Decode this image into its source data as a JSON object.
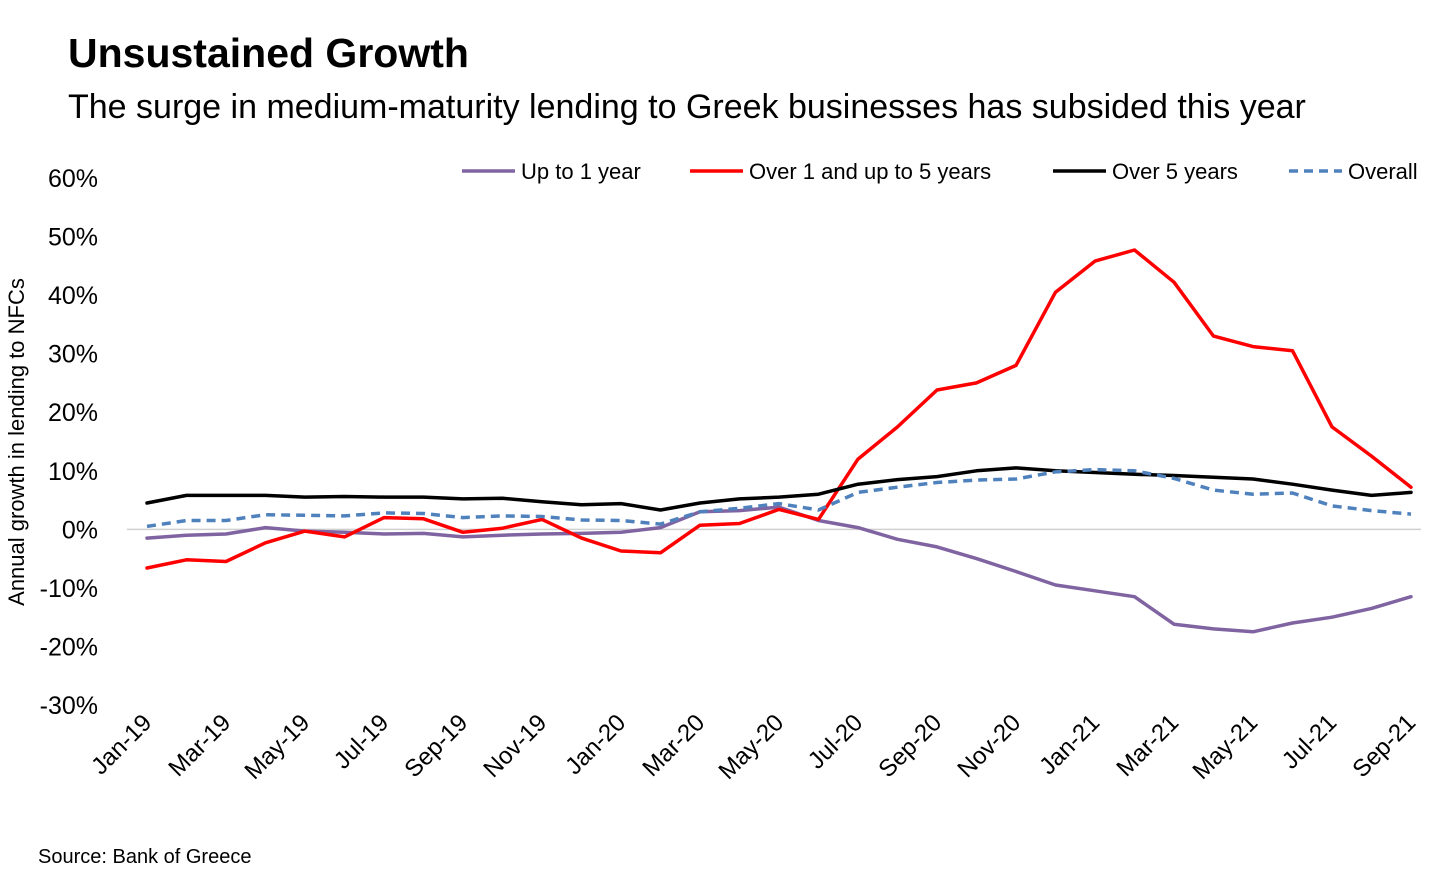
{
  "chart_data": {
    "type": "line",
    "title": "Unsustained Growth",
    "subtitle": "The surge in medium-maturity lending to Greek businesses has subsided this year",
    "source": "Source: Bank of Greece",
    "xlabel": "",
    "ylabel": "Annual growth in lending to NFCs",
    "ylim": [
      -30,
      60
    ],
    "yticks": [
      -30,
      -20,
      -10,
      0,
      10,
      20,
      30,
      40,
      50,
      60
    ],
    "ytick_labels": [
      "-30%",
      "-20%",
      "-10%",
      "0%",
      "10%",
      "20%",
      "30%",
      "40%",
      "50%",
      "60%"
    ],
    "x": [
      "Jan-19",
      "Feb-19",
      "Mar-19",
      "Apr-19",
      "May-19",
      "Jun-19",
      "Jul-19",
      "Aug-19",
      "Sep-19",
      "Oct-19",
      "Nov-19",
      "Dec-19",
      "Jan-20",
      "Feb-20",
      "Mar-20",
      "Apr-20",
      "May-20",
      "Jun-20",
      "Jul-20",
      "Aug-20",
      "Sep-20",
      "Oct-20",
      "Nov-20",
      "Dec-20",
      "Jan-21",
      "Feb-21",
      "Mar-21",
      "Apr-21",
      "May-21",
      "Jun-21",
      "Jul-21",
      "Aug-21",
      "Sep-21"
    ],
    "xtick_labels": [
      "Jan-19",
      "Mar-19",
      "May-19",
      "Jul-19",
      "Sep-19",
      "Nov-19",
      "Jan-20",
      "Mar-20",
      "May-20",
      "Jul-20",
      "Sep-20",
      "Nov-20",
      "Jan-21",
      "Mar-21",
      "May-21",
      "Jul-21",
      "Sep-21"
    ],
    "legend_position": "top",
    "series": [
      {
        "name": "Up to 1 year",
        "color": "#8064A2",
        "dash": "solid",
        "values": [
          -1.5,
          -1.0,
          -0.8,
          0.3,
          -0.3,
          -0.5,
          -0.8,
          -0.7,
          -1.3,
          -1.0,
          -0.8,
          -0.7,
          -0.5,
          0.3,
          3.0,
          3.2,
          3.8,
          1.5,
          0.3,
          -1.7,
          -3.0,
          -5.0,
          -7.2,
          -9.5,
          -10.5,
          -11.5,
          -16.2,
          -17.0,
          -17.5,
          -16.0,
          -15.0,
          -13.5,
          -11.5
        ]
      },
      {
        "name": "Over 1 and up to 5 years",
        "color": "#FF0000",
        "dash": "solid",
        "values": [
          -6.6,
          -5.2,
          -5.5,
          -2.3,
          -0.3,
          -1.3,
          2.0,
          1.8,
          -0.5,
          0.2,
          1.7,
          -1.5,
          -3.7,
          -4.0,
          0.7,
          1.0,
          3.4,
          1.7,
          12.0,
          17.5,
          23.8,
          25.0,
          28.0,
          40.5,
          45.8,
          47.7,
          42.2,
          33.0,
          31.2,
          30.5,
          17.5,
          12.5,
          7.2
        ]
      },
      {
        "name": "Over 5 years",
        "color": "#000000",
        "dash": "solid",
        "values": [
          4.5,
          5.8,
          5.8,
          5.8,
          5.5,
          5.6,
          5.5,
          5.5,
          5.2,
          5.3,
          4.7,
          4.2,
          4.4,
          3.3,
          4.5,
          5.2,
          5.5,
          6.0,
          7.7,
          8.5,
          9.0,
          10.0,
          10.5,
          10.0,
          9.7,
          9.4,
          9.2,
          8.9,
          8.6,
          7.7,
          6.7,
          5.8,
          6.3
        ]
      },
      {
        "name": "Overall",
        "color": "#4F81BD",
        "dash": "dashed",
        "values": [
          0.5,
          1.5,
          1.5,
          2.5,
          2.4,
          2.3,
          2.8,
          2.7,
          2.0,
          2.3,
          2.2,
          1.6,
          1.5,
          0.9,
          3.0,
          3.6,
          4.4,
          3.3,
          6.3,
          7.2,
          8.0,
          8.4,
          8.6,
          9.8,
          10.2,
          10.0,
          8.7,
          6.7,
          6.0,
          6.2,
          4.0,
          3.2,
          2.6
        ]
      }
    ]
  }
}
